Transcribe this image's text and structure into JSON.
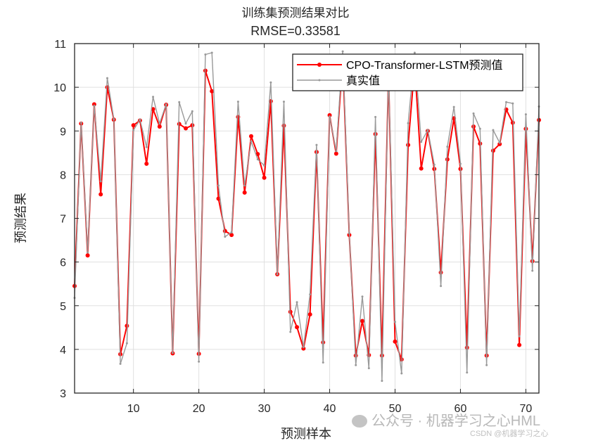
{
  "chart_data": {
    "type": "line",
    "title": "训练集预测结果对比",
    "subtitle": "RMSE=0.33581",
    "xlabel": "预测样本",
    "ylabel": "预测结果",
    "xlim": [
      1,
      72
    ],
    "ylim": [
      3,
      11
    ],
    "xticks": [
      10,
      20,
      30,
      40,
      50,
      60,
      70
    ],
    "yticks": [
      3,
      4,
      5,
      6,
      7,
      8,
      9,
      10,
      11
    ],
    "grid": true,
    "legend_position": "top-right",
    "x": [
      1,
      2,
      3,
      4,
      5,
      6,
      7,
      8,
      9,
      10,
      11,
      12,
      13,
      14,
      15,
      16,
      17,
      18,
      19,
      20,
      21,
      22,
      23,
      24,
      25,
      26,
      27,
      28,
      29,
      30,
      31,
      32,
      33,
      34,
      35,
      36,
      37,
      38,
      39,
      40,
      41,
      42,
      43,
      44,
      45,
      46,
      47,
      48,
      49,
      50,
      51,
      52,
      53,
      54,
      55,
      56,
      57,
      58,
      59,
      60,
      61,
      62,
      63,
      64,
      65,
      66,
      67,
      68,
      69,
      70,
      71,
      72
    ],
    "series": [
      {
        "name": "CPO-Transformer-LSTM预测值",
        "color": "#ff0000",
        "marker": "filled-circle",
        "values": [
          5.45,
          9.17,
          6.15,
          9.61,
          7.55,
          10.0,
          9.26,
          3.89,
          4.54,
          9.13,
          9.24,
          8.25,
          9.5,
          9.1,
          9.6,
          3.91,
          9.16,
          9.06,
          9.13,
          3.9,
          10.38,
          9.91,
          7.45,
          6.71,
          6.62,
          9.32,
          7.59,
          8.88,
          8.47,
          7.93,
          9.68,
          5.72,
          9.12,
          4.86,
          4.51,
          4.02,
          4.8,
          8.52,
          4.16,
          9.36,
          8.48,
          10.65,
          6.62,
          3.86,
          4.65,
          3.87,
          8.93,
          3.86,
          10.3,
          4.18,
          3.77,
          8.68,
          10.5,
          8.14,
          9.0,
          8.13,
          5.76,
          8.35,
          9.29,
          8.13,
          4.04,
          9.1,
          8.71,
          3.86,
          8.55,
          8.7,
          9.49,
          9.19,
          4.1,
          9.05,
          6.02,
          9.25
        ]
      },
      {
        "name": "真实值",
        "color": "#999999",
        "marker": "small-dot",
        "values": [
          5.18,
          9.19,
          6.22,
          9.58,
          7.85,
          10.21,
          9.27,
          3.67,
          4.14,
          9.02,
          9.26,
          8.63,
          9.78,
          9.17,
          9.61,
          3.92,
          9.66,
          9.17,
          9.45,
          3.72,
          10.75,
          10.79,
          7.75,
          6.58,
          6.68,
          9.67,
          7.75,
          8.76,
          8.35,
          8.21,
          10.11,
          5.72,
          9.67,
          4.4,
          5.08,
          4.05,
          5.26,
          8.68,
          3.7,
          9.33,
          8.54,
          10.82,
          6.66,
          3.64,
          5.21,
          3.57,
          9.32,
          3.28,
          10.33,
          4.63,
          3.45,
          9.18,
          10.79,
          8.75,
          9.02,
          8.23,
          5.45,
          8.64,
          9.55,
          8.25,
          3.47,
          9.4,
          9.05,
          3.64,
          9.02,
          8.73,
          9.66,
          9.63,
          4.3,
          9.38,
          5.8,
          9.56
        ]
      }
    ]
  },
  "legend": {
    "items": [
      {
        "label": "CPO-Transformer-LSTM预测值"
      },
      {
        "label": "真实值"
      }
    ]
  },
  "watermark": {
    "text": "公众号 · 机器学习之心HML",
    "subtext": "CSDN @机器学习之心"
  }
}
